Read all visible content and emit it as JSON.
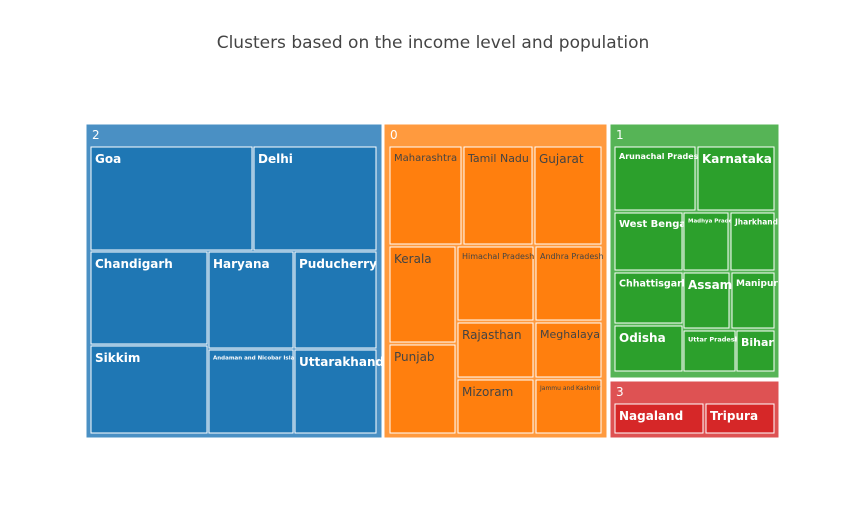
{
  "chart_data": {
    "type": "treemap",
    "title": "Clusters based on the income level and population",
    "clusters": [
      {
        "name": "2",
        "color": "#1f77b4",
        "outline": "#4a90c4",
        "text_color": "#ffffff",
        "columns": [
          {
            "rows": [
              [
                "Goa",
                "Delhi"
              ],
              [
                "Chandigarh",
                "Haryana",
                "Puducherry"
              ],
              [
                "Sikkim",
                "Andaman and Nicobar Islands",
                "Uttarakhand"
              ]
            ]
          }
        ]
      },
      {
        "name": "0",
        "color": "#ff7f0e",
        "outline": "#ff9a3e",
        "text_color": "#444444",
        "columns": [
          {
            "rows": [
              [
                "Maharashtra",
                "Tamil Nadu",
                "Gujarat"
              ],
              [
                "Kerala",
                "Himachal Pradesh",
                "Andhra Pradesh",
                "Punjab",
                "Rajasthan",
                "Meghalaya",
                "Mizoram",
                "Jammu and Kashmir"
              ]
            ]
          }
        ]
      },
      {
        "name": "1",
        "color": "#2ca02c",
        "outline": "#56b456",
        "text_color": "#ffffff",
        "columns": [
          {
            "rows": [
              [
                "Arunachal Pradesh",
                "Karnataka"
              ],
              [
                "West Bengal",
                "Madhya Pradesh",
                "Jharkhand"
              ],
              [
                "Chhattisgarh",
                "Assam",
                "Manipur"
              ],
              [
                "Odisha",
                "Uttar Pradesh",
                "Bihar"
              ]
            ]
          }
        ]
      },
      {
        "name": "3",
        "color": "#d62728",
        "outline": "#de5253",
        "text_color": "#ffffff",
        "columns": [
          {
            "rows": [
              [
                "Nagaland",
                "Tripura"
              ]
            ]
          }
        ]
      }
    ]
  }
}
